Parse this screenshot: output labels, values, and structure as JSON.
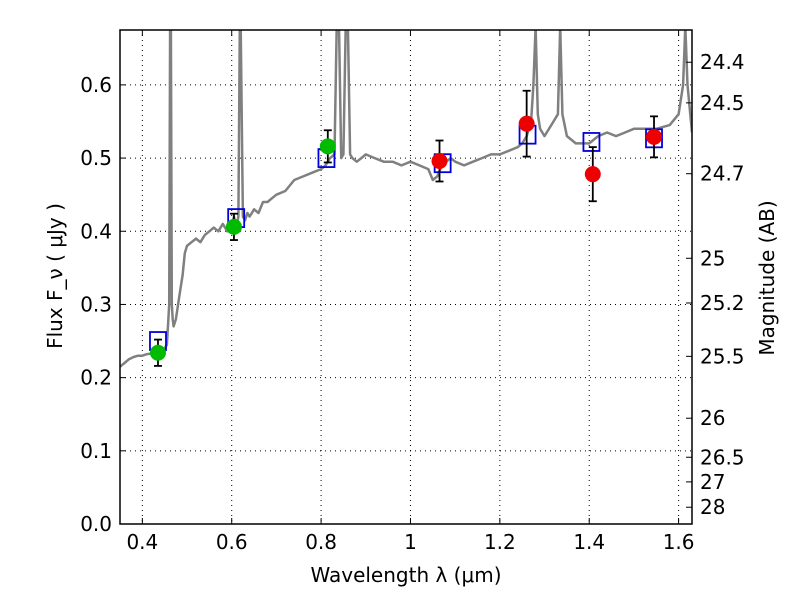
{
  "chart_data": {
    "type": "scatter",
    "title": "",
    "xlabel": "Wavelength  λ (μm)",
    "ylabel": "Flux  F_ν  ( μJy )",
    "ylabel_right": "Magnitude (AB)",
    "xlim": [
      0.35,
      1.63
    ],
    "ylim": [
      0.0,
      0.675
    ],
    "grid": true,
    "x_ticks": [
      0.4,
      0.6,
      0.8,
      1.0,
      1.2,
      1.4,
      1.6
    ],
    "x_tick_labels": [
      "0.4",
      "0.6",
      "0.8",
      "1",
      "1.2",
      "1.4",
      "1.6"
    ],
    "y_ticks": [
      0.0,
      0.1,
      0.2,
      0.3,
      0.4,
      0.5,
      0.6
    ],
    "y_tick_labels": [
      "0.0",
      "0.1",
      "0.2",
      "0.3",
      "0.4",
      "0.5",
      "0.6"
    ],
    "right_ticks": [
      {
        "mag": 24.4,
        "label": "24.4"
      },
      {
        "mag": 24.5,
        "label": "24.5"
      },
      {
        "mag": 24.7,
        "label": "24.7"
      },
      {
        "mag": 25.0,
        "label": "25"
      },
      {
        "mag": 25.2,
        "label": "25.2"
      },
      {
        "mag": 25.5,
        "label": "25.5"
      },
      {
        "mag": 26.0,
        "label": "26"
      },
      {
        "mag": 26.5,
        "label": "26.5"
      },
      {
        "mag": 27.0,
        "label": "27"
      },
      {
        "mag": 28.0,
        "label": "28"
      }
    ],
    "colors": {
      "spectrum": "#808080",
      "green": "#00bb00",
      "red": "#ee0000",
      "model": "#0000dd",
      "errorbar": "#000000"
    },
    "series": [
      {
        "type": "line",
        "x": [
          0.35,
          0.36,
          0.37,
          0.38,
          0.39,
          0.4,
          0.41,
          0.42,
          0.43,
          0.44,
          0.45,
          0.455,
          0.46,
          0.462,
          0.464,
          0.466,
          0.468,
          0.47,
          0.475,
          0.48,
          0.485,
          0.49,
          0.495,
          0.5,
          0.51,
          0.52,
          0.53,
          0.54,
          0.55,
          0.56,
          0.57,
          0.58,
          0.59,
          0.6,
          0.605,
          0.61,
          0.615,
          0.618,
          0.62,
          0.625,
          0.63,
          0.635,
          0.64,
          0.65,
          0.66,
          0.67,
          0.68,
          0.69,
          0.7,
          0.72,
          0.74,
          0.76,
          0.78,
          0.8,
          0.81,
          0.82,
          0.83,
          0.835,
          0.84,
          0.845,
          0.85,
          0.855,
          0.86,
          0.865,
          0.87,
          0.88,
          0.89,
          0.9,
          0.92,
          0.94,
          0.96,
          0.98,
          1.0,
          1.02,
          1.04,
          1.05,
          1.06,
          1.07,
          1.08,
          1.09,
          1.1,
          1.12,
          1.14,
          1.16,
          1.18,
          1.2,
          1.22,
          1.24,
          1.25,
          1.26,
          1.27,
          1.275,
          1.28,
          1.285,
          1.29,
          1.3,
          1.32,
          1.33,
          1.335,
          1.34,
          1.35,
          1.37,
          1.4,
          1.42,
          1.44,
          1.46,
          1.48,
          1.5,
          1.52,
          1.55,
          1.58,
          1.6,
          1.61,
          1.615,
          1.62,
          1.63
        ],
        "y": [
          0.215,
          0.22,
          0.225,
          0.228,
          0.23,
          0.23,
          0.232,
          0.233,
          0.235,
          0.236,
          0.24,
          0.245,
          0.3,
          0.68,
          0.68,
          0.3,
          0.28,
          0.27,
          0.28,
          0.3,
          0.32,
          0.34,
          0.37,
          0.38,
          0.385,
          0.39,
          0.385,
          0.395,
          0.4,
          0.405,
          0.4,
          0.41,
          0.4,
          0.41,
          0.42,
          0.405,
          0.42,
          0.68,
          0.68,
          0.42,
          0.415,
          0.425,
          0.42,
          0.43,
          0.425,
          0.44,
          0.44,
          0.445,
          0.45,
          0.455,
          0.47,
          0.475,
          0.48,
          0.485,
          0.49,
          0.5,
          0.505,
          0.68,
          0.68,
          0.5,
          0.505,
          0.68,
          0.68,
          0.505,
          0.5,
          0.495,
          0.5,
          0.505,
          0.5,
          0.495,
          0.495,
          0.49,
          0.495,
          0.49,
          0.485,
          0.47,
          0.475,
          0.49,
          0.495,
          0.5,
          0.495,
          0.49,
          0.495,
          0.5,
          0.505,
          0.505,
          0.51,
          0.515,
          0.52,
          0.53,
          0.55,
          0.6,
          0.68,
          0.56,
          0.54,
          0.53,
          0.55,
          0.56,
          0.68,
          0.56,
          0.53,
          0.52,
          0.52,
          0.53,
          0.535,
          0.53,
          0.535,
          0.54,
          0.54,
          0.54,
          0.545,
          0.56,
          0.6,
          0.68,
          0.6,
          0.535
        ],
        "color": "#808080"
      },
      {
        "type": "model",
        "marker": "square",
        "x": [
          0.435,
          0.61,
          0.812,
          1.072,
          1.262,
          1.405,
          1.545
        ],
        "y": [
          0.25,
          0.418,
          0.5,
          0.493,
          0.532,
          0.522,
          0.527
        ],
        "color": "#0000dd"
      },
      {
        "type": "points",
        "marker": "circle",
        "x": [
          0.435,
          0.605,
          0.815
        ],
        "y": [
          0.234,
          0.406,
          0.516
        ],
        "yerr": [
          0.018,
          0.018,
          0.022
        ],
        "color": "#00bb00"
      },
      {
        "type": "points",
        "marker": "circle",
        "x": [
          1.065,
          1.26,
          1.408,
          1.545
        ],
        "y": [
          0.496,
          0.547,
          0.478,
          0.529
        ],
        "yerr": [
          0.028,
          0.045,
          0.037,
          0.028
        ],
        "color": "#ee0000"
      }
    ]
  }
}
